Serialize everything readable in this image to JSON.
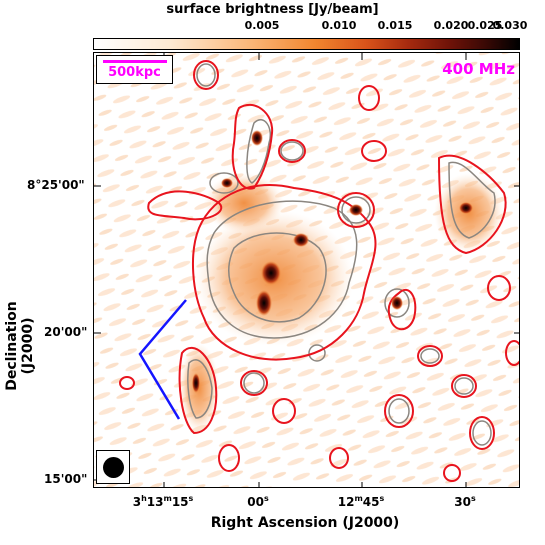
{
  "colorbar": {
    "title": "surface brightness [Jy/beam]",
    "ticks": [
      "0.005",
      "0.010",
      "0.015",
      "0.020",
      "0.025",
      "0.030"
    ]
  },
  "scalebar": {
    "label": "500kpc"
  },
  "frequency": "400 MHz",
  "axes": {
    "y_title": "Declination (J2000)",
    "x_title": "Right Ascension (J2000)",
    "y_ticks": [
      "8°25'00\"",
      "20'00\"",
      "15'00\""
    ],
    "x_ticks": [
      {
        "h": "3",
        "m": "13",
        "s": "15"
      },
      {
        "s": "00"
      },
      {
        "m": "12",
        "s": "45"
      },
      {
        "s": "30"
      }
    ]
  },
  "colors": {
    "contour_red": "#e8141e",
    "contour_gray": "#8b8680",
    "annotation": "#ff00ff",
    "wedge": "#1515ff"
  }
}
